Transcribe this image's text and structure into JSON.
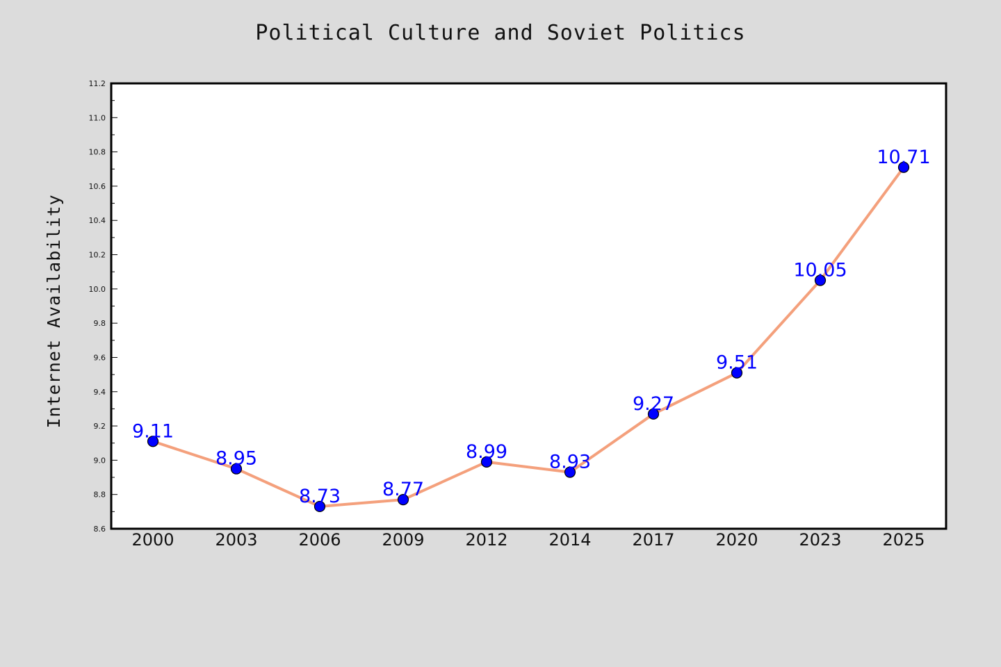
{
  "chart_data": {
    "type": "line",
    "title": "Political Culture and Soviet Politics",
    "xlabel": "",
    "ylabel": "Internet Availability",
    "categories": [
      "2000",
      "2003",
      "2006",
      "2009",
      "2012",
      "2014",
      "2017",
      "2020",
      "2023",
      "2025"
    ],
    "series": [
      {
        "values": [
          9.11,
          8.95,
          8.73,
          8.77,
          8.99,
          8.93,
          9.27,
          9.51,
          10.05,
          10.71
        ],
        "data_labels": [
          "9.11",
          "8.95",
          "8.73",
          "8.77",
          "8.99",
          "8.93",
          "9.27",
          "9.51",
          "10.05",
          "10.71"
        ]
      }
    ],
    "ylim": [
      8.6,
      11.2
    ],
    "yticks": [
      "8.6",
      "8.8",
      "9.0",
      "9.2",
      "9.4",
      "9.6",
      "9.8",
      "10.0",
      "10.2",
      "10.4",
      "10.6",
      "10.8",
      "11.0",
      "11.2"
    ],
    "grid": false,
    "colors": {
      "line": "#f4a07c",
      "marker": "#0000ff",
      "marker_edge": "#000000",
      "data_label": "#0000ff",
      "background": "#dcdcdc",
      "plot_background": "#ffffff"
    }
  }
}
